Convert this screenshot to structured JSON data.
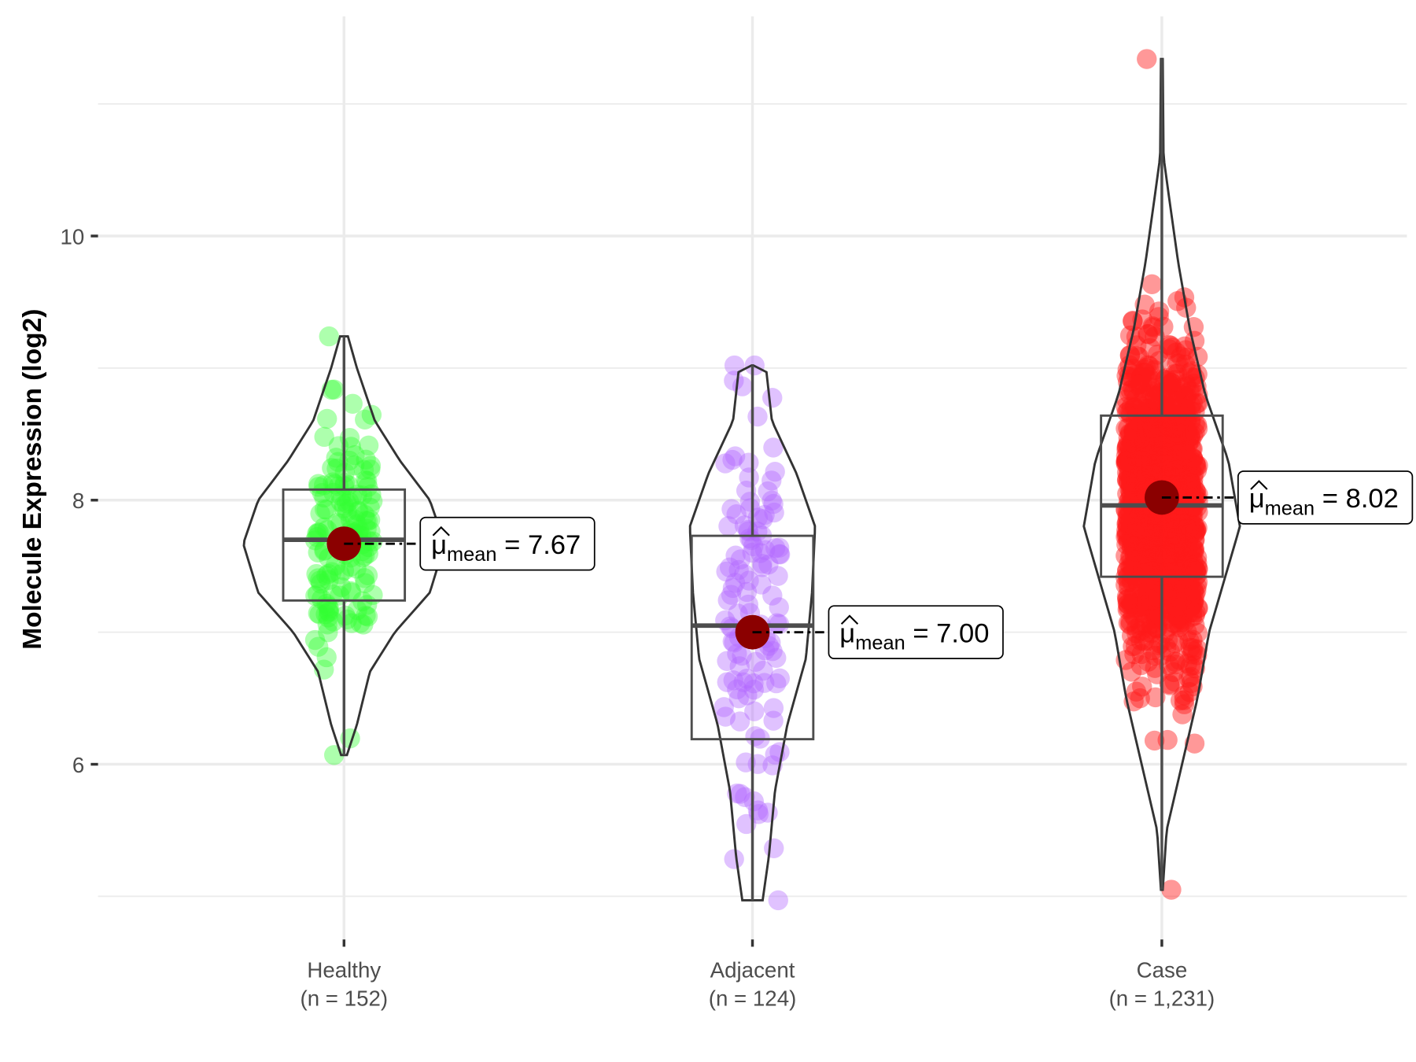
{
  "chart_data": {
    "type": "violin",
    "title": "",
    "xlabel": "",
    "ylabel": "Molecule Expression (log2)",
    "ylim": [
      4.85,
      11.5
    ],
    "yticks": [
      6,
      8,
      10
    ],
    "grid": true,
    "mean_label_prefix": "μ",
    "mean_label_sub": "mean",
    "groups": [
      {
        "name": "Healthy",
        "n_label": "(n = 152)",
        "n": 152,
        "color": "#33ff33",
        "mean": 7.67,
        "mean_text": "7.67",
        "q1": 7.24,
        "median": 7.7,
        "q3": 8.08,
        "min": 6.07,
        "max": 9.24,
        "density": [
          [
            6.07,
            0.02
          ],
          [
            6.3,
            0.12
          ],
          [
            6.7,
            0.25
          ],
          [
            7.0,
            0.5
          ],
          [
            7.3,
            0.85
          ],
          [
            7.67,
            1.0
          ],
          [
            8.0,
            0.85
          ],
          [
            8.3,
            0.55
          ],
          [
            8.6,
            0.3
          ],
          [
            9.0,
            0.12
          ],
          [
            9.24,
            0.03
          ]
        ]
      },
      {
        "name": "Adjacent",
        "n_label": "(n = 124)",
        "n": 124,
        "color": "#b266ff",
        "mean": 7.0,
        "mean_text": "7.00",
        "q1": 6.19,
        "median": 7.05,
        "q3": 7.73,
        "min": 4.97,
        "max": 9.02,
        "density": [
          [
            4.97,
            0.15
          ],
          [
            5.3,
            0.25
          ],
          [
            5.8,
            0.35
          ],
          [
            6.3,
            0.55
          ],
          [
            6.8,
            0.85
          ],
          [
            7.3,
            0.95
          ],
          [
            7.8,
            1.0
          ],
          [
            8.2,
            0.7
          ],
          [
            8.6,
            0.3
          ],
          [
            9.02,
            0.2
          ]
        ]
      },
      {
        "name": "Case",
        "n_label": "(n = 1,231)",
        "n": 1231,
        "color": "#ff1a1a",
        "mean": 8.02,
        "mean_text": "8.02",
        "q1": 7.42,
        "median": 7.96,
        "q3": 8.64,
        "min": 5.05,
        "max": 11.34,
        "density": [
          [
            5.05,
            0.0
          ],
          [
            5.5,
            0.05
          ],
          [
            6.0,
            0.25
          ],
          [
            6.5,
            0.45
          ],
          [
            7.0,
            0.6
          ],
          [
            7.5,
            0.85
          ],
          [
            7.8,
            1.0
          ],
          [
            8.3,
            0.85
          ],
          [
            8.8,
            0.55
          ],
          [
            9.3,
            0.35
          ],
          [
            9.8,
            0.2
          ],
          [
            10.3,
            0.08
          ],
          [
            10.6,
            0.01
          ],
          [
            11.34,
            0.0
          ]
        ]
      }
    ]
  }
}
